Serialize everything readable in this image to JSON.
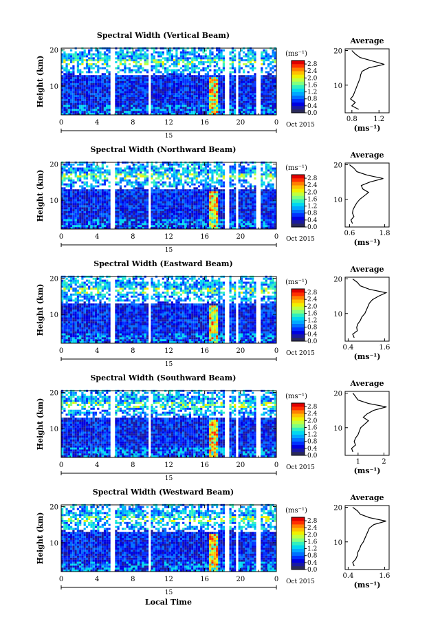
{
  "x_axis": {
    "ticks": [
      "0",
      "4",
      "8",
      "12",
      "16",
      "20",
      "0"
    ],
    "xlim": [
      0,
      24
    ],
    "date_day": "15",
    "month_year": "Oct 2015",
    "label": "Local Time"
  },
  "y_axis": {
    "label": "Height (km)",
    "ticks": [
      "10",
      "20"
    ],
    "ylim": [
      2,
      20.5
    ]
  },
  "colorbar": {
    "unit": "(ms⁻¹)",
    "ticks": [
      "0.0",
      "0.4",
      "0.8",
      "1.2",
      "1.6",
      "2.0",
      "2.4",
      "2.8"
    ],
    "range": [
      0.0,
      3.0
    ],
    "colors": [
      "#2a2a5a",
      "#1a1aa0",
      "#0000e0",
      "#0030ff",
      "#0070ff",
      "#00a8ff",
      "#00d8f0",
      "#30f0c0",
      "#80ff80",
      "#c0ff40",
      "#f0f000",
      "#ffc000",
      "#ff8000",
      "#ff3000",
      "#e00000"
    ]
  },
  "data_gaps_hours": [
    [
      5.3,
      5.9
    ],
    [
      9.7,
      10.0
    ],
    [
      18.1,
      18.6
    ],
    [
      19.4,
      19.6
    ],
    [
      21.6,
      22.1
    ]
  ],
  "panels": [
    {
      "title": "Spectral Width (Vertical Beam)",
      "avg_title": "Average",
      "avg_xlabel": "(ms⁻¹)",
      "avg_ticks": [
        "0.8",
        "1.2"
      ],
      "avg_xlim": [
        0.7,
        1.35
      ]
    },
    {
      "title": "Spectral Width (Northward Beam)",
      "avg_title": "Average",
      "avg_xlabel": "(ms⁻¹)",
      "avg_ticks": [
        "0.6",
        "1.8"
      ],
      "avg_xlim": [
        0.45,
        1.95
      ]
    },
    {
      "title": "Spectral Width (Eastward Beam)",
      "avg_title": "Average",
      "avg_xlabel": "(ms⁻¹)",
      "avg_ticks": [
        "0.4",
        "1.6"
      ],
      "avg_xlim": [
        0.3,
        1.75
      ]
    },
    {
      "title": "Spectral Width (Southward Beam)",
      "avg_title": "Average",
      "avg_xlabel": "(ms⁻¹)",
      "avg_ticks": [
        "1",
        "2"
      ],
      "avg_xlim": [
        0.5,
        2.2
      ]
    },
    {
      "title": "Spectral Width (Westward Beam)",
      "avg_title": "Average",
      "avg_xlabel": "(ms⁻¹)",
      "avg_ticks": [
        "0.4",
        "1.6"
      ],
      "avg_xlim": [
        0.3,
        1.75
      ]
    }
  ],
  "chart_data": [
    {
      "type": "heatmap",
      "title": "Spectral Width (Vertical Beam)",
      "xlabel": "Local Time",
      "ylabel": "Height (km)",
      "xlim": [
        0,
        24
      ],
      "ylim": [
        2,
        20.5
      ],
      "profile": {
        "type": "line",
        "title": "Average",
        "heights": [
          3,
          4,
          5,
          6,
          7,
          8,
          9,
          10,
          11,
          12,
          13,
          14,
          15,
          16,
          17,
          18,
          19,
          20
        ],
        "values": [
          0.9,
          0.8,
          0.85,
          0.78,
          0.82,
          0.84,
          0.86,
          0.88,
          0.9,
          0.92,
          0.93,
          0.95,
          1.05,
          1.28,
          1.1,
          0.92,
          0.85,
          0.8
        ]
      }
    },
    {
      "type": "heatmap",
      "title": "Spectral Width (Northward Beam)",
      "xlabel": "Local Time",
      "ylabel": "Height (km)",
      "xlim": [
        0,
        24
      ],
      "ylim": [
        2,
        20.5
      ],
      "profile": {
        "type": "line",
        "title": "Average",
        "heights": [
          3,
          4,
          5,
          6,
          7,
          8,
          9,
          10,
          11,
          12,
          13,
          14,
          15,
          16,
          17,
          18,
          19,
          20
        ],
        "values": [
          0.7,
          0.65,
          0.75,
          0.7,
          0.72,
          0.78,
          0.85,
          0.95,
          1.1,
          1.25,
          1.05,
          1.0,
          1.3,
          1.75,
          1.2,
          0.85,
          0.75,
          0.6
        ]
      }
    },
    {
      "type": "heatmap",
      "title": "Spectral Width (Eastward Beam)",
      "xlabel": "Local Time",
      "ylabel": "Height (km)",
      "xlim": [
        0,
        24
      ],
      "ylim": [
        2,
        20.5
      ],
      "profile": {
        "type": "line",
        "title": "Average",
        "heights": [
          3,
          4,
          5,
          6,
          7,
          8,
          9,
          10,
          11,
          12,
          13,
          14,
          15,
          16,
          17,
          18,
          19,
          20
        ],
        "values": [
          0.6,
          0.55,
          0.7,
          0.68,
          0.72,
          0.8,
          0.85,
          0.95,
          1.0,
          1.05,
          1.1,
          1.2,
          1.4,
          1.65,
          1.1,
          0.8,
          0.7,
          0.55
        ]
      }
    },
    {
      "type": "heatmap",
      "title": "Spectral Width (Southward Beam)",
      "xlabel": "Local Time",
      "ylabel": "Height (km)",
      "xlim": [
        0,
        24
      ],
      "ylim": [
        2,
        20.5
      ],
      "profile": {
        "type": "line",
        "title": "Average",
        "heights": [
          3,
          4,
          5,
          6,
          7,
          8,
          9,
          10,
          11,
          12,
          13,
          14,
          15,
          16,
          17,
          18,
          19,
          20
        ],
        "values": [
          0.8,
          0.75,
          0.9,
          0.85,
          0.9,
          1.0,
          1.05,
          1.1,
          1.25,
          1.4,
          1.2,
          1.35,
          1.6,
          2.1,
          1.4,
          1.0,
          0.9,
          0.8
        ]
      }
    },
    {
      "type": "heatmap",
      "title": "Spectral Width (Westward Beam)",
      "xlabel": "Local Time",
      "ylabel": "Height (km)",
      "xlim": [
        0,
        24
      ],
      "ylim": [
        2,
        20.5
      ],
      "profile": {
        "type": "line",
        "title": "Average",
        "heights": [
          3,
          4,
          5,
          6,
          7,
          8,
          9,
          10,
          11,
          12,
          13,
          14,
          15,
          16,
          17,
          18,
          19,
          20
        ],
        "values": [
          0.6,
          0.55,
          0.65,
          0.7,
          0.72,
          0.78,
          0.82,
          0.9,
          0.95,
          1.0,
          1.05,
          1.1,
          1.25,
          1.65,
          1.1,
          0.8,
          0.7,
          0.55
        ]
      }
    }
  ]
}
